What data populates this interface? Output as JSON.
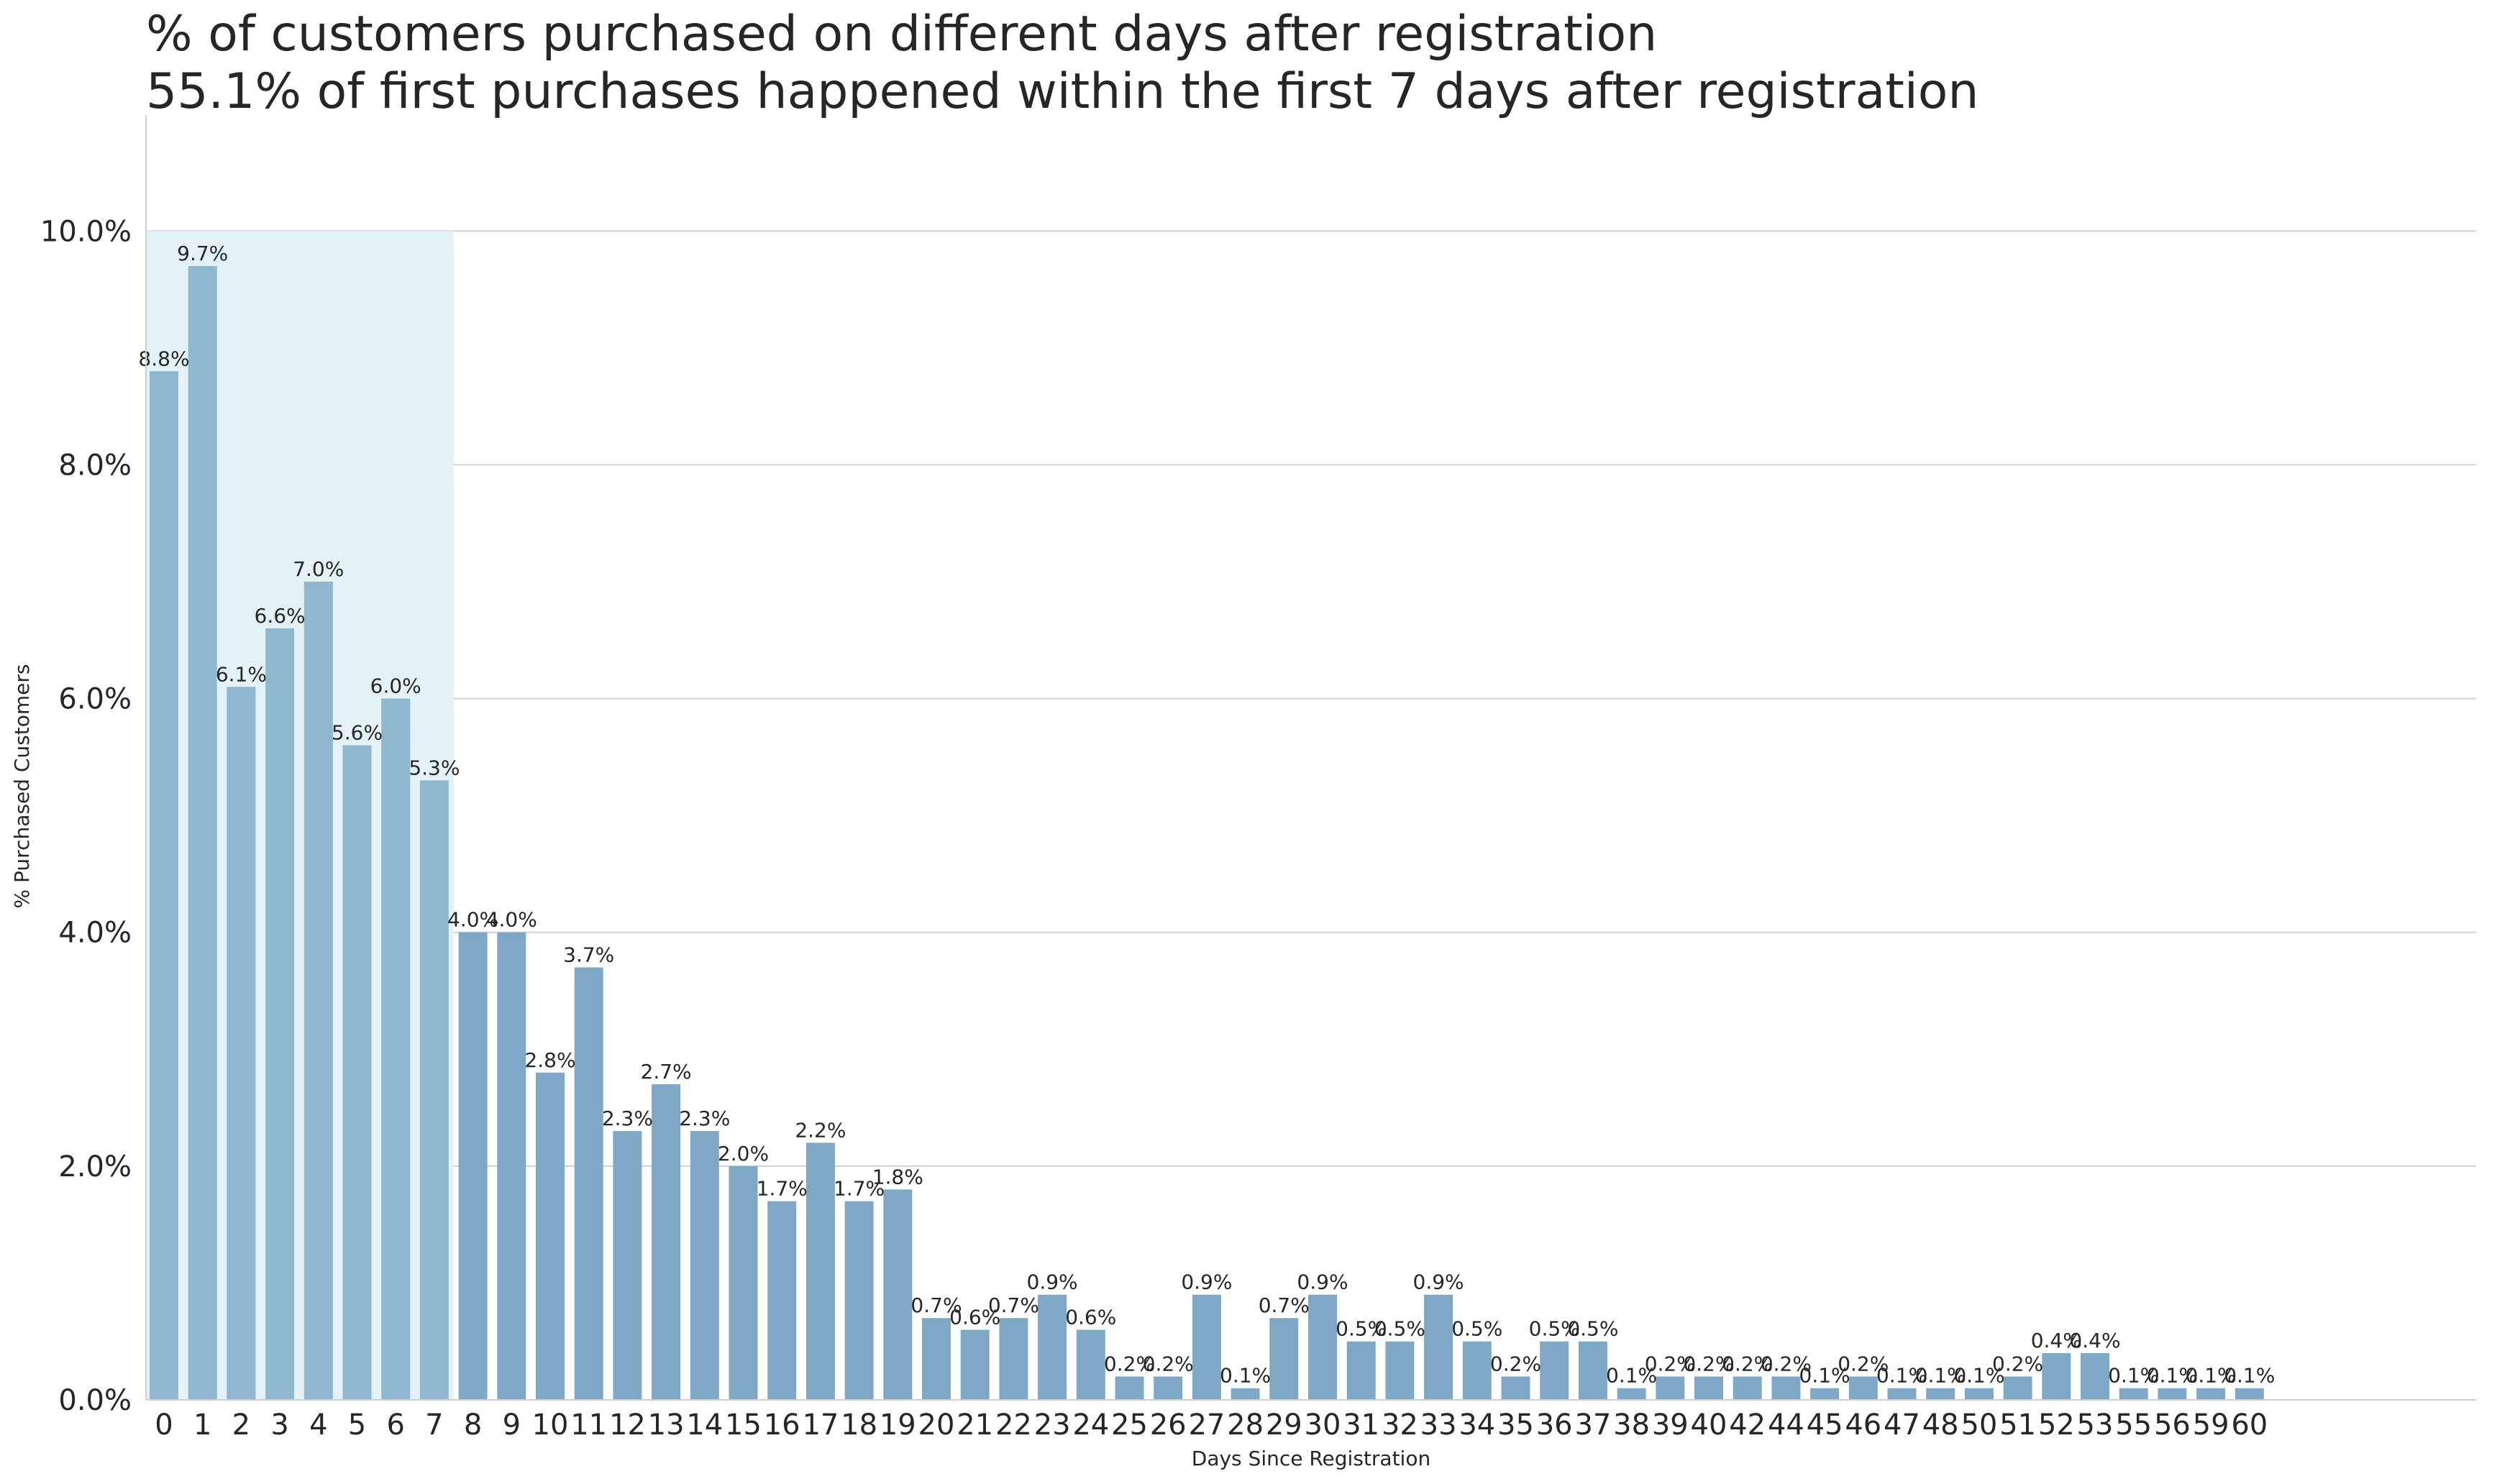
{
  "chart_data": {
    "type": "bar",
    "title": "% of customers purchased on different days after registration",
    "subtitle": "55.1% of first purchases happened within the first 7 days after registration",
    "xlabel": "Days Since Registration",
    "ylabel": "% Purchased Customers",
    "ylim": [
      0,
      10.5
    ],
    "yticks": [
      "0.0%",
      "2.0%",
      "4.0%",
      "6.0%",
      "8.0%",
      "10.0%"
    ],
    "ytick_values": [
      0,
      2,
      4,
      6,
      8,
      10
    ],
    "grid": "horizontal",
    "highlight_region": {
      "from_category": "0",
      "to_category": "7",
      "top": 10.0,
      "color": "#e4f2f7"
    },
    "bar_color": "#7fa8c6",
    "highlight_bar_color": "#8fb7d0",
    "categories": [
      "0",
      "1",
      "2",
      "3",
      "4",
      "5",
      "6",
      "7",
      "8",
      "9",
      "10",
      "11",
      "12",
      "13",
      "14",
      "15",
      "16",
      "17",
      "18",
      "19",
      "20",
      "21",
      "22",
      "23",
      "24",
      "25",
      "26",
      "27",
      "28",
      "29",
      "30",
      "31",
      "32",
      "33",
      "34",
      "35",
      "36",
      "37",
      "38",
      "39",
      "40",
      "42",
      "44",
      "45",
      "46",
      "47",
      "48",
      "50",
      "51",
      "52",
      "53",
      "55",
      "56",
      "59",
      "60"
    ],
    "values": [
      8.8,
      9.7,
      6.1,
      6.6,
      7.0,
      5.6,
      6.0,
      5.3,
      4.0,
      4.0,
      2.8,
      3.7,
      2.3,
      2.7,
      2.3,
      2.0,
      1.7,
      2.2,
      1.7,
      1.8,
      0.7,
      0.6,
      0.7,
      0.9,
      0.6,
      0.2,
      0.2,
      0.9,
      0.1,
      0.7,
      0.9,
      0.5,
      0.5,
      0.9,
      0.5,
      0.2,
      0.5,
      0.5,
      0.1,
      0.2,
      0.2,
      0.2,
      0.2,
      0.1,
      0.2,
      0.1,
      0.1,
      0.1,
      0.2,
      0.4,
      0.4,
      0.1,
      0.1,
      0.1,
      0.1
    ],
    "data_labels": [
      "8.8%",
      "9.7%",
      "6.1%",
      "6.6%",
      "7.0%",
      "5.6%",
      "6.0%",
      "5.3%",
      "4.0%",
      "4.0%",
      "2.8%",
      "3.7%",
      "2.3%",
      "2.7%",
      "2.3%",
      "2.0%",
      "1.7%",
      "2.2%",
      "1.7%",
      "1.8%",
      "0.7%",
      "0.6%",
      "0.7%",
      "0.9%",
      "0.6%",
      "0.2%",
      "0.2%",
      "0.9%",
      "0.1%",
      "0.7%",
      "0.9%",
      "0.5%",
      "0.5%",
      "0.9%",
      "0.5%",
      "0.2%",
      "0.5%",
      "0.5%",
      "0.1%",
      "0.2%",
      "0.2%",
      "0.2%",
      "0.2%",
      "0.1%",
      "0.2%",
      "0.1%",
      "0.1%",
      "0.1%",
      "0.2%",
      "0.4%",
      "0.4%",
      "0.1%",
      "0.1%",
      "0.1%",
      "0.1%"
    ]
  }
}
